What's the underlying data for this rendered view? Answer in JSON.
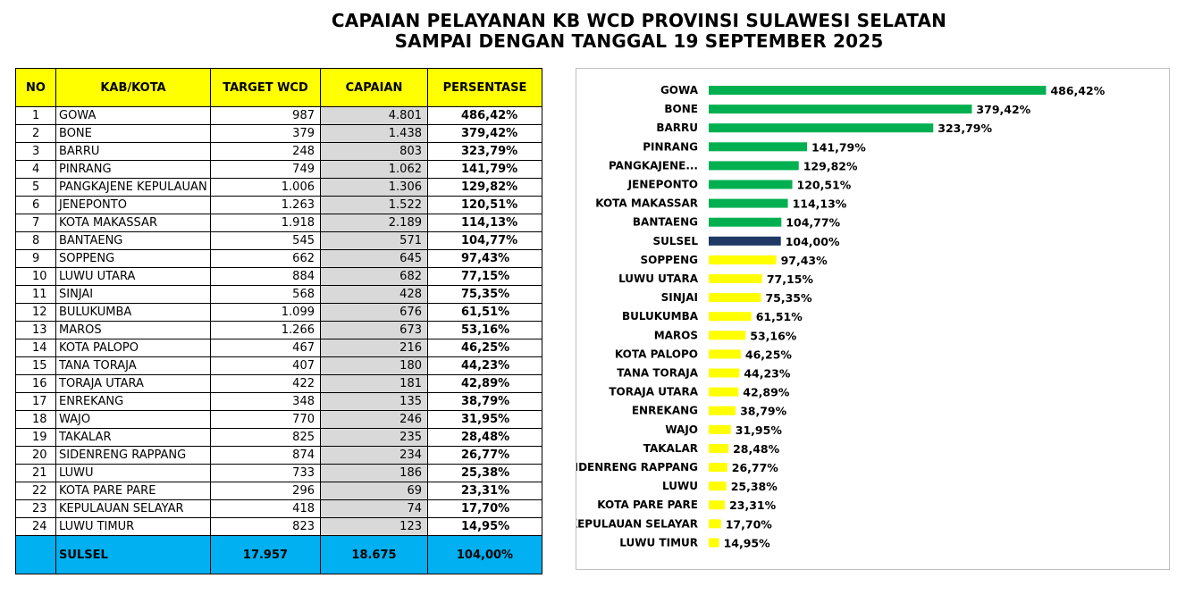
{
  "title_line1": "CAPAIAN PELAYANAN KB WCD PROVINSI SULAWESI SELATAN",
  "title_line2": "SAMPAI DENGAN TANGGAL 19 SEPTEMBER  2025",
  "table": {
    "headers": [
      "NO",
      "KAB/KOTA",
      "TARGET WCD",
      "CAPAIAN",
      "PERSENTASE"
    ],
    "rows": [
      [
        "1",
        "GOWA",
        "987",
        "4.801",
        "486,42%"
      ],
      [
        "2",
        "BONE",
        "379",
        "1.438",
        "379,42%"
      ],
      [
        "3",
        "BARRU",
        "248",
        "803",
        "323,79%"
      ],
      [
        "4",
        "PINRANG",
        "749",
        "1.062",
        "141,79%"
      ],
      [
        "5",
        "PANGKAJENE KEPULAUAN",
        "1.006",
        "1.306",
        "129,82%"
      ],
      [
        "6",
        "JENEPONTO",
        "1.263",
        "1.522",
        "120,51%"
      ],
      [
        "7",
        "KOTA MAKASSAR",
        "1.918",
        "2.189",
        "114,13%"
      ],
      [
        "8",
        "BANTAENG",
        "545",
        "571",
        "104,77%"
      ],
      [
        "9",
        "SOPPENG",
        "662",
        "645",
        "97,43%"
      ],
      [
        "10",
        "LUWU UTARA",
        "884",
        "682",
        "77,15%"
      ],
      [
        "11",
        "SINJAI",
        "568",
        "428",
        "75,35%"
      ],
      [
        "12",
        "BULUKUMBA",
        "1.099",
        "676",
        "61,51%"
      ],
      [
        "13",
        "MAROS",
        "1.266",
        "673",
        "53,16%"
      ],
      [
        "14",
        "KOTA PALOPO",
        "467",
        "216",
        "46,25%"
      ],
      [
        "15",
        "TANA TORAJA",
        "407",
        "180",
        "44,23%"
      ],
      [
        "16",
        "TORAJA UTARA",
        "422",
        "181",
        "42,89%"
      ],
      [
        "17",
        "ENREKANG",
        "348",
        "135",
        "38,79%"
      ],
      [
        "18",
        "WAJO",
        "770",
        "246",
        "31,95%"
      ],
      [
        "19",
        "TAKALAR",
        "825",
        "235",
        "28,48%"
      ],
      [
        "20",
        "SIDENRENG RAPPANG",
        "874",
        "234",
        "26,77%"
      ],
      [
        "21",
        "LUWU",
        "733",
        "186",
        "25,38%"
      ],
      [
        "22",
        "KOTA PARE PARE",
        "296",
        "69",
        "23,31%"
      ],
      [
        "23",
        "KEPULAUAN SELAYAR",
        "418",
        "74",
        "17,70%"
      ],
      [
        "24",
        "LUWU TIMUR",
        "823",
        "123",
        "14,95%"
      ]
    ],
    "total": {
      "name": "SULSEL",
      "target": "17.957",
      "capaian": "18.675",
      "persentase": "104,00%"
    }
  },
  "colors": {
    "header_bg": "#ffff00",
    "total_bg": "#00b0f0",
    "capaian_bg": "#d9d9d9",
    "bar_above": "#00b050",
    "bar_below": "#ffff00",
    "bar_total": "#1f3864"
  },
  "chart_data": {
    "type": "bar",
    "orientation": "horizontal",
    "categories": [
      "GOWA",
      "BONE",
      "BARRU",
      "PINRANG",
      "PANGKAJENE...",
      "JENEPONTO",
      "KOTA MAKASSAR",
      "BANTAENG",
      "SULSEL",
      "SOPPENG",
      "LUWU UTARA",
      "SINJAI",
      "BULUKUMBA",
      "MAROS",
      "KOTA PALOPO",
      "TANA TORAJA",
      "TORAJA UTARA",
      "ENREKANG",
      "WAJO",
      "TAKALAR",
      "SIDENRENG RAPPANG",
      "LUWU",
      "KOTA PARE PARE",
      "KEPULAUAN SELAYAR",
      "LUWU TIMUR"
    ],
    "values": [
      486.42,
      379.42,
      323.79,
      141.79,
      129.82,
      120.51,
      114.13,
      104.77,
      104.0,
      97.43,
      77.15,
      75.35,
      61.51,
      53.16,
      46.25,
      44.23,
      42.89,
      38.79,
      31.95,
      28.48,
      26.77,
      25.38,
      23.31,
      17.7,
      14.95
    ],
    "value_labels": [
      "486,42%",
      "379,42%",
      "323,79%",
      "141,79%",
      "129,82%",
      "120,51%",
      "114,13%",
      "104,77%",
      "104,00%",
      "97,43%",
      "77,15%",
      "75,35%",
      "61,51%",
      "53,16%",
      "46,25%",
      "44,23%",
      "42,89%",
      "38,79%",
      "31,95%",
      "28,48%",
      "26,77%",
      "25,38%",
      "23,31%",
      "17,70%",
      "14,95%"
    ],
    "bar_colors": [
      "#00b050",
      "#00b050",
      "#00b050",
      "#00b050",
      "#00b050",
      "#00b050",
      "#00b050",
      "#00b050",
      "#1f3864",
      "#ffff00",
      "#ffff00",
      "#ffff00",
      "#ffff00",
      "#ffff00",
      "#ffff00",
      "#ffff00",
      "#ffff00",
      "#ffff00",
      "#ffff00",
      "#ffff00",
      "#ffff00",
      "#ffff00",
      "#ffff00",
      "#ffff00",
      "#ffff00"
    ],
    "xlim": [
      0,
      500
    ],
    "grid": false,
    "legend": "none",
    "title": "",
    "xlabel": "",
    "ylabel": ""
  }
}
